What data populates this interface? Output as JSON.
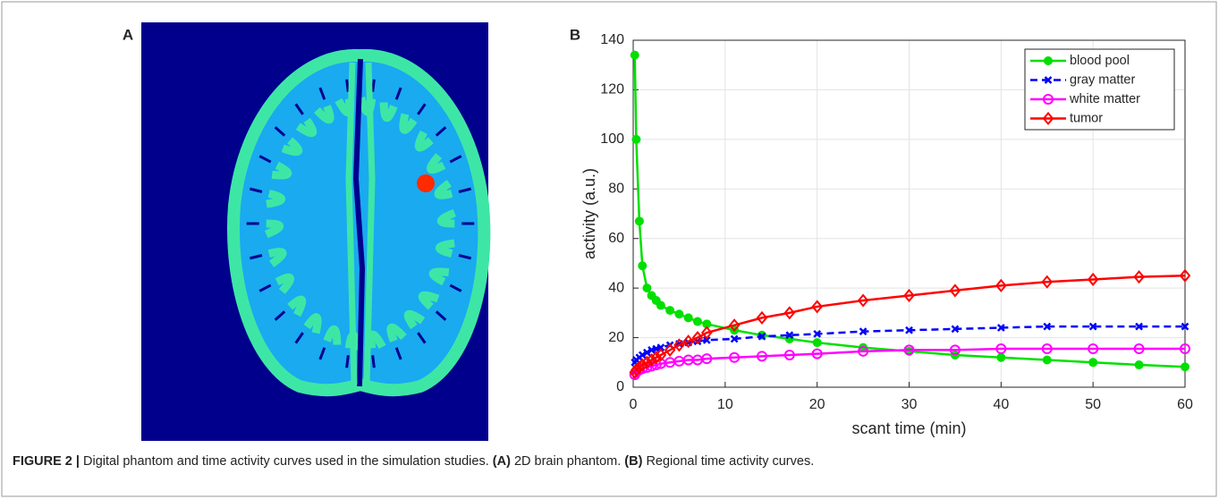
{
  "panels": {
    "a_label": "A",
    "b_label": "B"
  },
  "chart_data": {
    "type": "line",
    "xlabel": "scant time (min)",
    "ylabel": "activity (a.u.)",
    "x": [
      0.17,
      0.33,
      0.67,
      1,
      1.5,
      2,
      2.5,
      3,
      4,
      5,
      6,
      7,
      8,
      11,
      14,
      17,
      20,
      25,
      30,
      35,
      40,
      45,
      50,
      55,
      60
    ],
    "series": [
      {
        "name": "blood pool",
        "color": "#00e000",
        "marker": "dot",
        "dash": false,
        "values": [
          134,
          100,
          67,
          49,
          40,
          37,
          35,
          33,
          31,
          29.5,
          28,
          26.5,
          25.5,
          23,
          21,
          19.5,
          18,
          16,
          14.5,
          13,
          12,
          11,
          10,
          9,
          8.2
        ]
      },
      {
        "name": "gray matter",
        "color": "#0000ff",
        "marker": "x",
        "dash": true,
        "values": [
          10,
          11,
          12,
          13,
          14,
          15,
          15.5,
          16,
          17,
          17.5,
          18,
          18.5,
          19,
          19.5,
          20.5,
          21,
          21.5,
          22.5,
          23,
          23.5,
          24,
          24.5,
          24.5,
          24.5,
          24.5
        ]
      },
      {
        "name": "white matter",
        "color": "#ff00ff",
        "marker": "circle",
        "dash": false,
        "values": [
          5,
          6,
          7,
          7.5,
          8,
          8.5,
          9,
          9.5,
          10,
          10.5,
          11,
          11,
          11.5,
          12,
          12.5,
          13,
          13.5,
          14.5,
          15,
          15,
          15.5,
          15.5,
          15.5,
          15.5,
          15.5
        ]
      },
      {
        "name": "tumor",
        "color": "#ff0000",
        "marker": "diamond",
        "dash": false,
        "values": [
          6,
          7,
          8,
          9,
          10,
          11,
          12,
          13,
          15,
          17,
          18.5,
          20,
          22,
          25,
          28,
          30,
          32.5,
          35,
          37,
          39,
          41,
          42.5,
          43.5,
          44.5,
          45
        ]
      }
    ],
    "xlim": [
      0,
      60
    ],
    "xticks": [
      0,
      10,
      20,
      30,
      40,
      50,
      60
    ],
    "ylim": [
      0,
      140
    ],
    "yticks": [
      0,
      20,
      40,
      60,
      80,
      100,
      120,
      140
    ],
    "grid": true,
    "legend": "top-right"
  },
  "caption": {
    "label": "FIGURE 2 |",
    "text": "Digital phantom and time activity curves used in the simulation studies.",
    "a_ref": "(A)",
    "a_text": "2D brain phantom.",
    "b_ref": "(B)",
    "b_text": "Regional time activity curves."
  }
}
